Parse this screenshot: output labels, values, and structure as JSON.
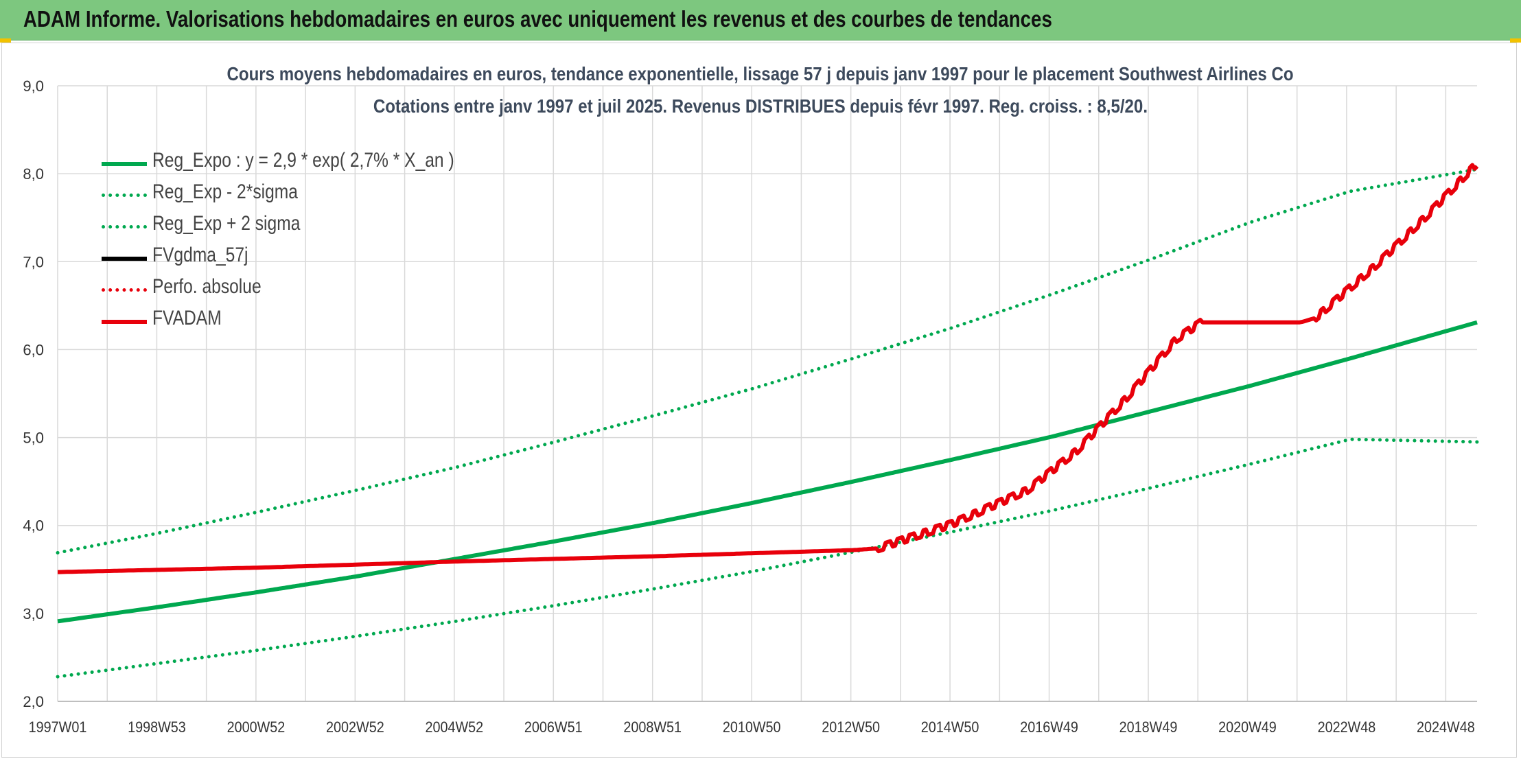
{
  "header": {
    "title": "ADAM Informe. Valorisations hebdomadaires en euros avec uniquement les revenus et des courbes de tendances"
  },
  "colors": {
    "header_bg": "#7dc77f",
    "green": "#00a84f",
    "red": "#e8000b",
    "black": "#000000",
    "grid": "#d9d9d9"
  },
  "chart_data": {
    "type": "line",
    "title": "Cours moyens hebdomadaires en euros, tendance exponentielle, lissage 57 j depuis janv 1997 pour le placement Southwest Airlines Co",
    "subtitle": "Cotations entre janv 1997 et juil 2025. Revenus DISTRIBUES depuis févr 1997. Reg. croiss. : 8,5/20.",
    "xlabel": "",
    "ylabel": "",
    "ylim": [
      2.0,
      9.0
    ],
    "y_ticks": [
      "2,0",
      "3,0",
      "4,0",
      "5,0",
      "6,0",
      "7,0",
      "8,0",
      "9,0"
    ],
    "x_ticks": [
      "1997W01",
      "1998W53",
      "2000W52",
      "2002W52",
      "2004W52",
      "2006W51",
      "2008W51",
      "2010W50",
      "2012W50",
      "2014W50",
      "2016W49",
      "2018W49",
      "2020W49",
      "2022W48",
      "2024W48"
    ],
    "x_range": [
      "1997W01",
      "2025W30"
    ],
    "legend_position": "top-left",
    "grid": true,
    "series": [
      {
        "name": "Reg_Expo : y = 2,9 * exp( 2,7% *  X_an )",
        "color": "#00a84f",
        "style": "solid",
        "x": [
          1997.0,
          1999.0,
          2001.0,
          2003.0,
          2005.0,
          2007.0,
          2009.0,
          2011.0,
          2013.0,
          2015.0,
          2017.0,
          2019.0,
          2021.0,
          2023.0,
          2025.55
        ],
        "y": [
          2.91,
          3.07,
          3.24,
          3.42,
          3.62,
          3.82,
          4.03,
          4.26,
          4.5,
          4.75,
          5.01,
          5.3,
          5.59,
          5.9,
          6.31
        ]
      },
      {
        "name": "Reg_Exp - 2*sigma",
        "color": "#00a84f",
        "style": "dotted",
        "x": [
          1997.0,
          1999.0,
          2001.0,
          2003.0,
          2005.0,
          2007.0,
          2009.0,
          2011.0,
          2013.0,
          2015.0,
          2017.0,
          2019.0,
          2021.0,
          2023.0,
          2025.55
        ],
        "y": [
          2.28,
          2.43,
          2.58,
          2.74,
          2.91,
          3.09,
          3.28,
          3.48,
          3.7,
          3.93,
          4.17,
          4.43,
          4.7,
          4.98,
          4.95
        ]
      },
      {
        "name": "Reg_Exp + 2 sigma",
        "color": "#00a84f",
        "style": "dotted",
        "x": [
          1997.0,
          1999.0,
          2001.0,
          2003.0,
          2005.0,
          2007.0,
          2009.0,
          2011.0,
          2013.0,
          2015.0,
          2017.0,
          2019.0,
          2021.0,
          2023.0,
          2025.55
        ],
        "y": [
          3.69,
          3.91,
          4.15,
          4.4,
          4.66,
          4.95,
          5.25,
          5.56,
          5.9,
          6.25,
          6.63,
          7.03,
          7.45,
          7.8,
          8.05
        ]
      },
      {
        "name": "FVgdma_57j",
        "color": "#000000",
        "style": "solid",
        "x": [
          1997.0,
          2001.0,
          2005.0,
          2009.0,
          2013.0,
          2013.5,
          2015.0,
          2016.5,
          2017.5,
          2018.5,
          2019.5,
          2020.0,
          2022.0,
          2022.3,
          2023.5,
          2024.5,
          2025.55
        ],
        "y": [
          3.47,
          3.52,
          3.59,
          3.65,
          3.72,
          3.74,
          4.02,
          4.4,
          4.85,
          5.45,
          6.12,
          6.31,
          6.31,
          6.36,
          6.95,
          7.5,
          8.12
        ]
      },
      {
        "name": "Perfo. absolue",
        "color": "#e8000b",
        "style": "dotted",
        "x": [],
        "y": []
      },
      {
        "name": "FVADAM",
        "color": "#e8000b",
        "style": "solid",
        "x": [
          1997.0,
          2001.0,
          2005.0,
          2009.0,
          2013.0,
          2013.5,
          2015.0,
          2016.5,
          2017.5,
          2018.5,
          2019.5,
          2020.0,
          2022.0,
          2022.3,
          2023.5,
          2024.5,
          2025.55
        ],
        "y": [
          3.47,
          3.52,
          3.59,
          3.65,
          3.72,
          3.74,
          4.02,
          4.4,
          4.85,
          5.45,
          6.12,
          6.31,
          6.31,
          6.36,
          6.95,
          7.5,
          8.12
        ]
      }
    ]
  }
}
